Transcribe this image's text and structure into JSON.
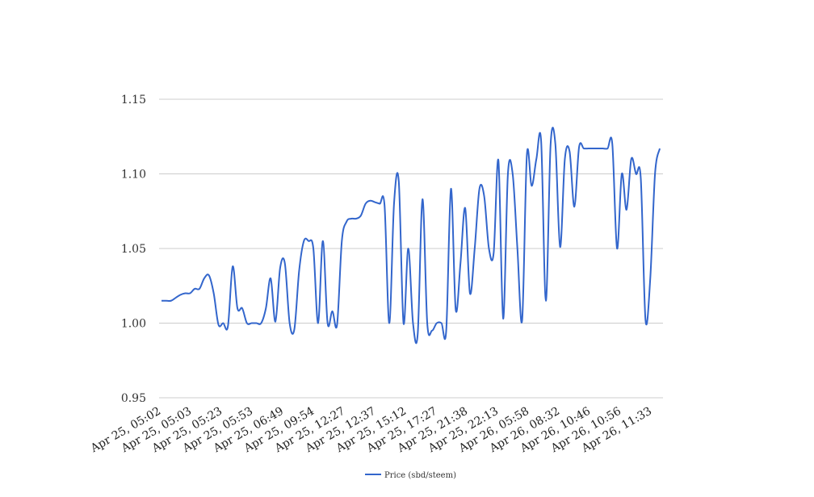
{
  "chart_data": {
    "type": "line",
    "title": "",
    "xlabel": "",
    "ylabel": "",
    "ylim": [
      0.95,
      1.15
    ],
    "yticks": [
      "0.95",
      "1.00",
      "1.05",
      "1.10",
      "1.15"
    ],
    "grid": true,
    "legend_position": "bottom-center",
    "x_tick_labels": [
      "Apr 25, 05:02",
      "Apr 25, 05:03",
      "Apr 25, 05:23",
      "Apr 25, 05:53",
      "Apr 25, 06:49",
      "Apr 25, 09:54",
      "Apr 25, 12:27",
      "Apr 25, 12:37",
      "Apr 25, 15:12",
      "Apr 25, 17:27",
      "Apr 25, 21:38",
      "Apr 25, 22:13",
      "Apr 26, 05:58",
      "Apr 26, 08:32",
      "Apr 26, 10:46",
      "Apr 26, 10:56",
      "Apr 26, 11:33"
    ],
    "series": [
      {
        "name": "Price (sbd/steem)",
        "color": "#3366cc",
        "values": [
          1.015,
          1.015,
          1.015,
          1.017,
          1.019,
          1.02,
          1.02,
          1.023,
          1.023,
          1.03,
          1.032,
          1.02,
          0.999,
          1.0,
          0.998,
          1.038,
          1.01,
          1.01,
          1.0,
          1.0,
          1.0,
          1.0,
          1.01,
          1.03,
          1.001,
          1.037,
          1.04,
          1.0,
          0.996,
          1.035,
          1.055,
          1.055,
          1.05,
          1.0,
          1.055,
          1.0,
          1.008,
          0.999,
          1.055,
          1.068,
          1.07,
          1.07,
          1.072,
          1.08,
          1.082,
          1.081,
          1.08,
          1.079,
          1.0,
          1.08,
          1.095,
          1.0,
          1.05,
          1.0,
          0.993,
          1.083,
          1.0,
          0.995,
          1.0,
          1.0,
          0.995,
          1.09,
          1.009,
          1.04,
          1.077,
          1.02,
          1.05,
          1.09,
          1.085,
          1.05,
          1.047,
          1.109,
          1.003,
          1.1,
          1.1,
          1.05,
          1.002,
          1.113,
          1.092,
          1.11,
          1.122,
          1.015,
          1.12,
          1.12,
          1.051,
          1.11,
          1.115,
          1.078,
          1.118,
          1.117,
          1.117,
          1.117,
          1.117,
          1.117,
          1.117,
          1.12,
          1.05,
          1.1,
          1.076,
          1.11,
          1.1,
          1.097,
          1.002,
          1.03,
          1.1,
          1.117
        ]
      }
    ]
  }
}
